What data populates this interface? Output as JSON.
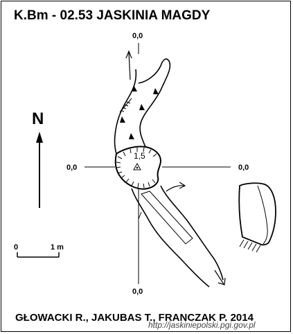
{
  "title": "K.Bm - 02.53   JASKINIA MAGDY",
  "north_label": "N",
  "coordinates": {
    "top": "0,0",
    "left": "0,0",
    "right": "0,0",
    "bottom": "0,0"
  },
  "depth_label": "1,5",
  "scale": {
    "start": "0",
    "end": "1 m"
  },
  "authors": "GŁOWACKI R., JAKUBAS T., FRANCZAK P. 2014",
  "url": "http://jaskiniepolski.pgi.gov.pl"
}
